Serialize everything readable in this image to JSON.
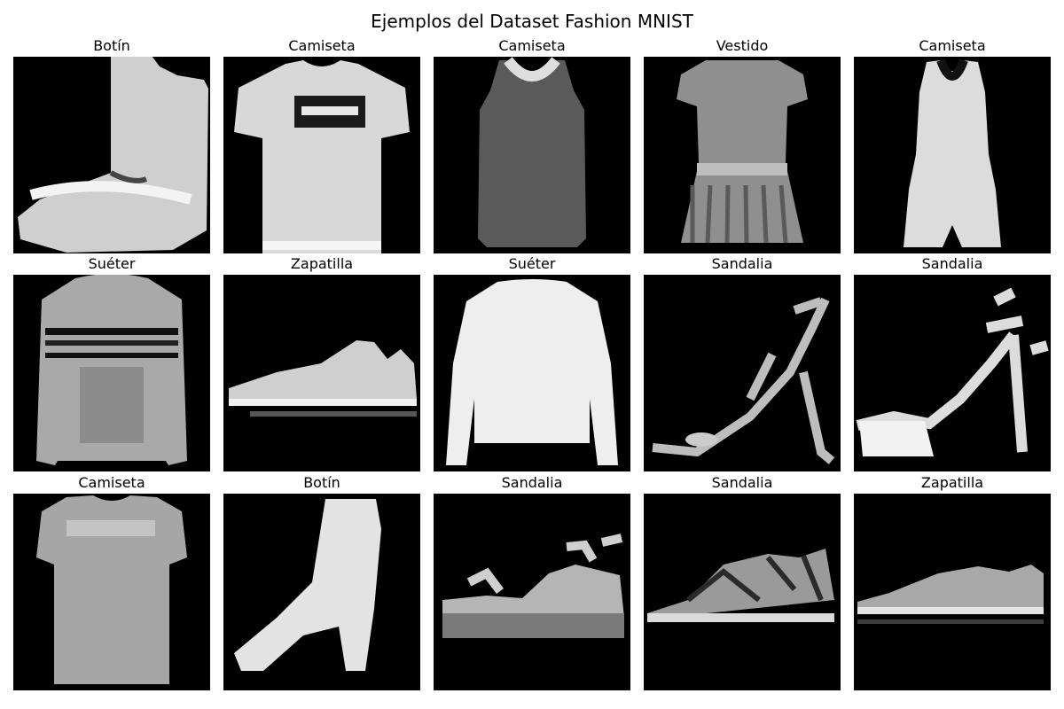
{
  "figure": {
    "title": "Ejemplos del Dataset Fashion MNIST"
  },
  "colors": {
    "background": "#ffffff",
    "image_background": "#000000"
  },
  "samples": [
    {
      "label": "Botín",
      "icon": "ankle-boot-icon"
    },
    {
      "label": "Camiseta",
      "icon": "tshirt-icon"
    },
    {
      "label": "Camiseta",
      "icon": "tank-top-icon"
    },
    {
      "label": "Vestido",
      "icon": "dress-icon"
    },
    {
      "label": "Camiseta",
      "icon": "tank-top-light-icon"
    },
    {
      "label": "Suéter",
      "icon": "striped-sweater-icon"
    },
    {
      "label": "Zapatilla",
      "icon": "sneaker-icon"
    },
    {
      "label": "Suéter",
      "icon": "sweater-icon"
    },
    {
      "label": "Sandalia",
      "icon": "heeled-sandal-icon"
    },
    {
      "label": "Sandalia",
      "icon": "platform-heel-sandal-icon"
    },
    {
      "label": "Camiseta",
      "icon": "long-tshirt-icon"
    },
    {
      "label": "Botín",
      "icon": "heeled-boot-icon"
    },
    {
      "label": "Sandalia",
      "icon": "platform-sandal-icon"
    },
    {
      "label": "Sandalia",
      "icon": "flat-sandal-icon"
    },
    {
      "label": "Zapatilla",
      "icon": "low-sneaker-icon"
    }
  ]
}
